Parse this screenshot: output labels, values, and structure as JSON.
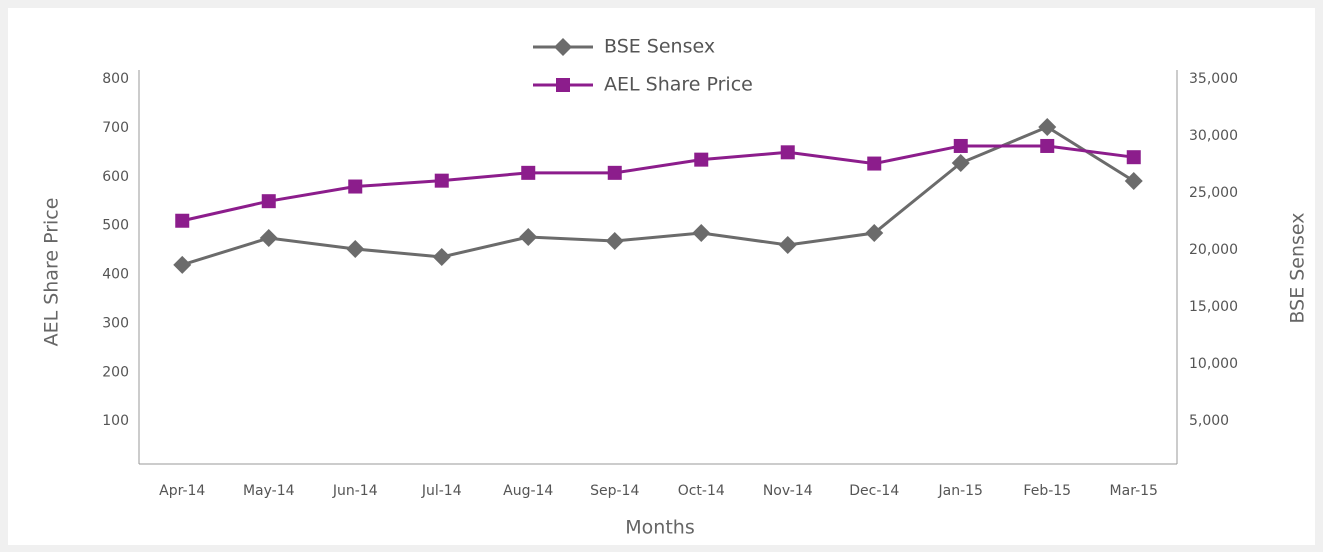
{
  "chart_data": {
    "type": "line",
    "xlabel": "Months",
    "ylabel": "AEL Share Price",
    "y2label": "BSE Sensex",
    "categories": [
      "Apr-14",
      "May-14",
      "Jun-14",
      "Jul-14",
      "Aug-14",
      "Sep-14",
      "Oct-14",
      "Nov-14",
      "Dec-14",
      "Jan-15",
      "Feb-15",
      "Mar-15"
    ],
    "series": [
      {
        "name": "BSE Sensex",
        "color": "#6b6b6b",
        "marker": "diamond",
        "axis": "y2",
        "values": [
          18700,
          21050,
          20090,
          19390,
          21140,
          20790,
          21490,
          20440,
          21490,
          27630,
          30790,
          26050
        ]
      },
      {
        "name": "AEL Share Price",
        "color": "#8c1d8c",
        "marker": "square",
        "axis": "y",
        "values": [
          510,
          550,
          580,
          592,
          608,
          608,
          635,
          650,
          627,
          663,
          663,
          640
        ]
      }
    ],
    "ylim": [
      0,
      800
    ],
    "yticks": [
      100,
      200,
      300,
      400,
      500,
      600,
      700,
      800
    ],
    "y2lim": [
      0,
      35000
    ],
    "y2ticks": [
      {
        "value": 5000,
        "label": "5,000"
      },
      {
        "value": 10000,
        "label": "10,000"
      },
      {
        "value": 15000,
        "label": "15,000"
      },
      {
        "value": 20000,
        "label": "20,000"
      },
      {
        "value": 25000,
        "label": "25,000"
      },
      {
        "value": 30000,
        "label": "30,000"
      },
      {
        "value": 35000,
        "label": "35,000"
      }
    ],
    "grid": false,
    "legend": "top"
  }
}
